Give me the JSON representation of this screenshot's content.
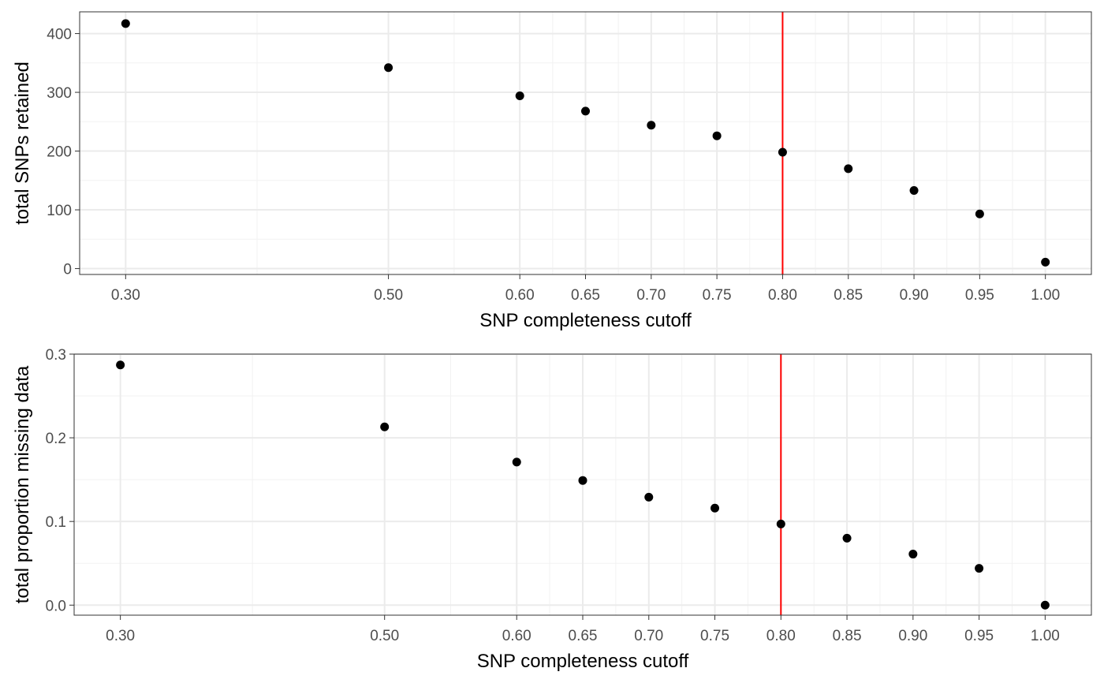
{
  "chart_data": [
    {
      "type": "scatter",
      "xlabel": "SNP completeness cutoff",
      "ylabel": "total SNPs retained",
      "x": [
        0.3,
        0.5,
        0.6,
        0.65,
        0.7,
        0.75,
        0.8,
        0.85,
        0.9,
        0.95,
        1.0
      ],
      "y": [
        417,
        342,
        294,
        268,
        244,
        226,
        198,
        170,
        133,
        93,
        11
      ],
      "xticks": [
        "0.30",
        "0.50",
        "0.60",
        "0.65",
        "0.70",
        "0.75",
        "0.80",
        "0.85",
        "0.90",
        "0.95",
        "1.00"
      ],
      "yticks": [
        "0",
        "100",
        "200",
        "300",
        "400"
      ],
      "xlim": [
        0.265,
        1.035
      ],
      "ylim": [
        -10,
        437
      ],
      "vline": 0.8,
      "vline_color": "#ff0000",
      "point_color": "#000000",
      "grid": true
    },
    {
      "type": "scatter",
      "xlabel": "SNP completeness cutoff",
      "ylabel": "total proportion missing data",
      "x": [
        0.3,
        0.5,
        0.6,
        0.65,
        0.7,
        0.75,
        0.8,
        0.85,
        0.9,
        0.95,
        1.0
      ],
      "y": [
        0.287,
        0.213,
        0.171,
        0.149,
        0.129,
        0.116,
        0.097,
        0.08,
        0.061,
        0.044,
        0.0
      ],
      "xticks": [
        "0.30",
        "0.50",
        "0.60",
        "0.65",
        "0.70",
        "0.75",
        "0.80",
        "0.85",
        "0.90",
        "0.95",
        "1.00"
      ],
      "yticks": [
        "0.0",
        "0.1",
        "0.2",
        "0.3"
      ],
      "xlim": [
        0.265,
        1.035
      ],
      "ylim": [
        -0.012,
        0.3
      ],
      "vline": 0.8,
      "vline_color": "#ff0000",
      "point_color": "#000000",
      "grid": true
    }
  ]
}
